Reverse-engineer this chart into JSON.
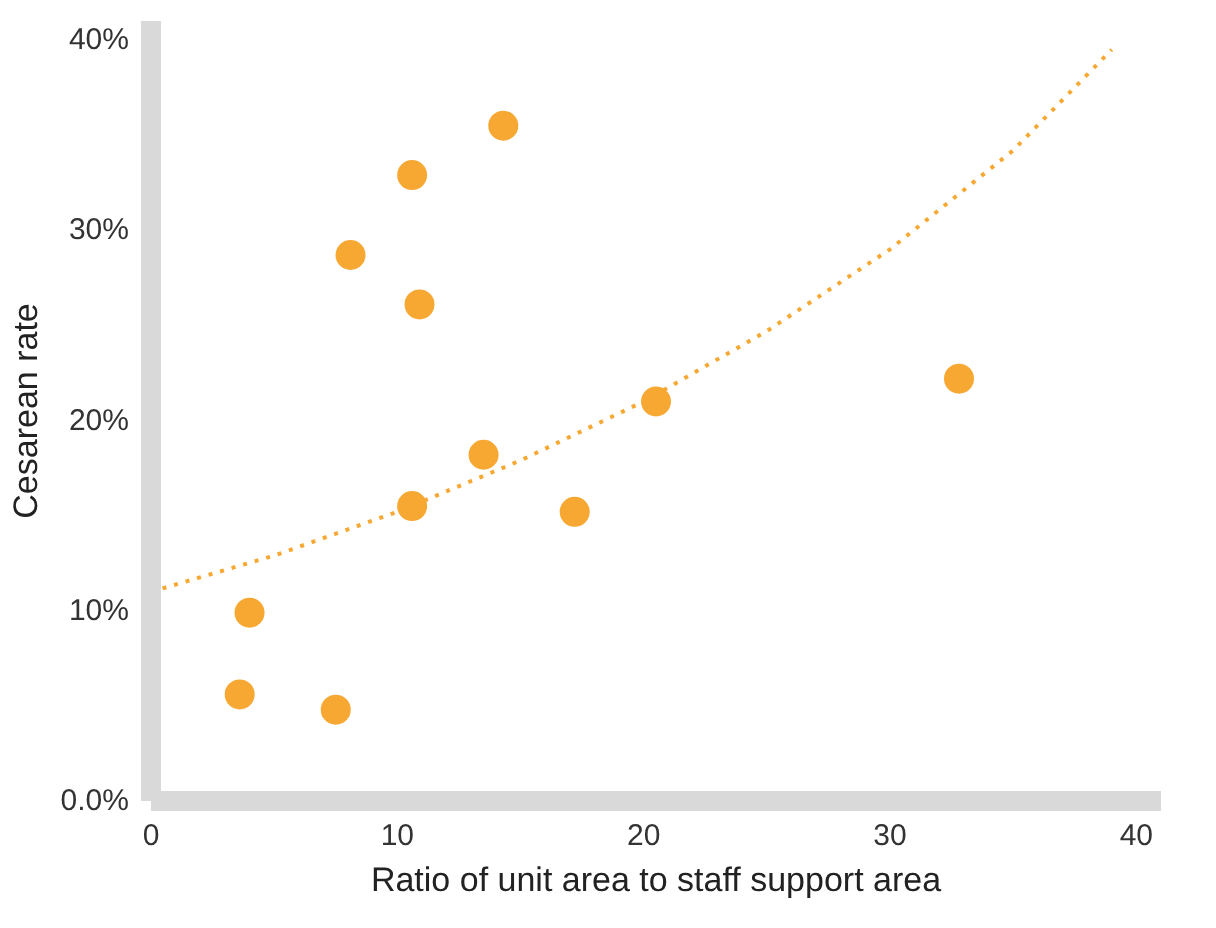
{
  "chart_data": {
    "type": "scatter",
    "xlabel": "Ratio of unit area to staff support area",
    "ylabel": "Cesarean rate",
    "xlim": [
      0,
      41
    ],
    "ylim": [
      0,
      41
    ],
    "xticks": [
      0,
      10,
      20,
      30,
      40
    ],
    "yticks": [
      {
        "value": 0,
        "label": "0.0%"
      },
      {
        "value": 10,
        "label": "10%"
      },
      {
        "value": 20,
        "label": "20%"
      },
      {
        "value": 30,
        "label": "30%"
      },
      {
        "value": 40,
        "label": "40%"
      }
    ],
    "grid": false,
    "series": [
      {
        "color": "#f7a833",
        "marker": "circle",
        "x": [
          3.6,
          4.0,
          7.5,
          8.1,
          10.6,
          10.9,
          10.6,
          13.5,
          14.3,
          17.2,
          20.5,
          32.8
        ],
        "values": [
          5.6,
          9.9,
          4.8,
          28.7,
          32.9,
          26.1,
          15.5,
          18.2,
          35.5,
          15.2,
          21.0,
          22.2
        ]
      },
      {
        "type": "line",
        "color": "#f7a833",
        "marker": "none",
        "line_style": "dotted",
        "x": [
          0,
          5,
          10,
          15,
          20,
          25,
          30,
          35,
          39
        ],
        "values": [
          11,
          12.9,
          15.2,
          17.9,
          21.0,
          24.7,
          29.0,
          34.2,
          39.5
        ]
      }
    ]
  }
}
